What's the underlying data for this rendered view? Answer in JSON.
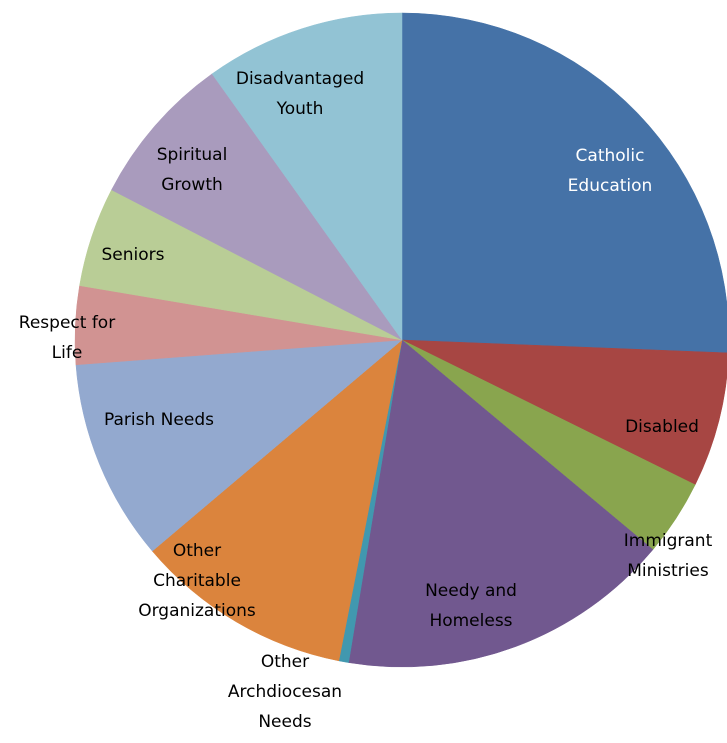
{
  "chart_data": {
    "type": "pie",
    "slices": [
      {
        "label": "Catholic Education",
        "value": 26.5,
        "color": "#4572A7",
        "label_color": "#ffffff"
      },
      {
        "label": "Disabled",
        "value": 6.9,
        "color": "#A74643",
        "label_color": "#000000"
      },
      {
        "label": "Immigrant Ministries",
        "value": 3.9,
        "color": "#89A54E",
        "label_color": "#000000"
      },
      {
        "label": "Needy and Homeless",
        "value": 17.1,
        "color": "#71588F",
        "label_color": "#000000"
      },
      {
        "label": "Other Archdiocesan Needs",
        "value": 0.5,
        "color": "#4198AF",
        "label_color": "#000000"
      },
      {
        "label": "Other Charitable Organizations",
        "value": 11.1,
        "color": "#DB843D",
        "label_color": "#000000"
      },
      {
        "label": "Parish Needs",
        "value": 10.3,
        "color": "#93A9CF",
        "label_color": "#000000"
      },
      {
        "label": "Respect for Life",
        "value": 4.0,
        "color": "#D19392",
        "label_color": "#000000"
      },
      {
        "label": "Seniors",
        "value": 5.1,
        "color": "#B9CD96",
        "label_color": "#000000"
      },
      {
        "label": "Spiritual Growth",
        "value": 7.8,
        "color": "#A99BBD",
        "label_color": "#000000"
      },
      {
        "label": "Disadvantaged Youth",
        "value": 10.2,
        "color": "#92C3D4",
        "label_color": "#000000"
      }
    ],
    "start": "12 o'clock",
    "direction": "clockwise",
    "legend": "none",
    "labels": "category names on or beside slices"
  }
}
